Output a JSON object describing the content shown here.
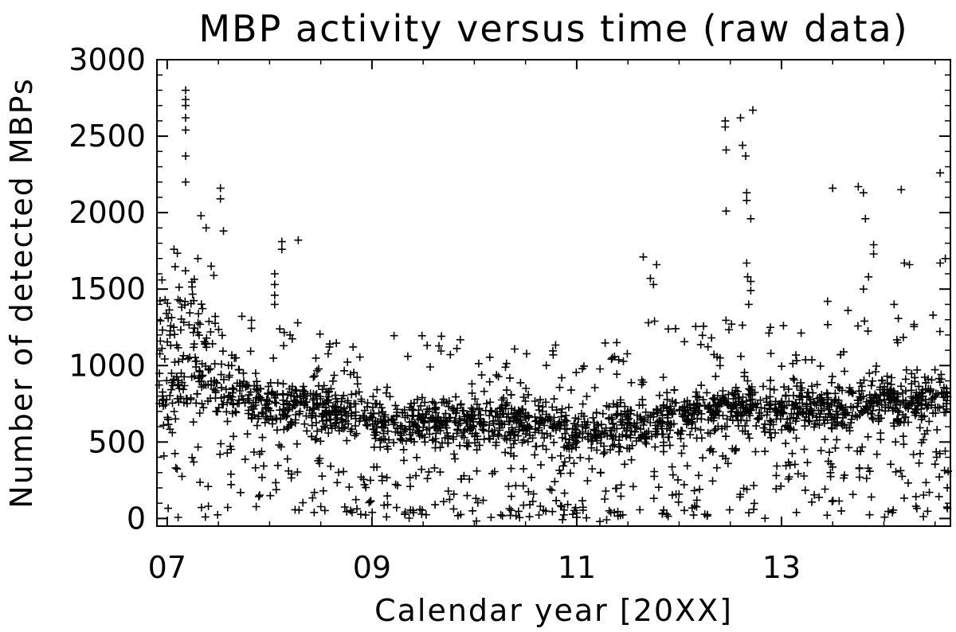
{
  "chart_data": {
    "type": "scatter",
    "title": "MBP activity versus time (raw data)",
    "xlabel": "Calendar year [20XX]",
    "ylabel": "Number of detected MBPs",
    "xlim": [
      2006.9,
      2014.65
    ],
    "ylim": [
      -50,
      3000
    ],
    "x_ticks": [
      2007,
      2009,
      2011,
      2013
    ],
    "x_tick_labels": [
      "07",
      "09",
      "11",
      "13"
    ],
    "y_ticks": [
      0,
      500,
      1000,
      1500,
      2000,
      2500,
      3000
    ],
    "y_tick_labels": [
      "0",
      "500",
      "1000",
      "1500",
      "2000",
      "2500",
      "3000"
    ],
    "marker": "plus",
    "grid": false,
    "trend": [
      [
        2006.9,
        850
      ],
      [
        2007.2,
        900
      ],
      [
        2007.5,
        820
      ],
      [
        2008.0,
        780
      ],
      [
        2008.5,
        720
      ],
      [
        2009.0,
        660
      ],
      [
        2009.5,
        640
      ],
      [
        2010.0,
        610
      ],
      [
        2010.5,
        640
      ],
      [
        2011.0,
        570
      ],
      [
        2011.5,
        620
      ],
      [
        2012.0,
        690
      ],
      [
        2012.5,
        740
      ],
      [
        2013.0,
        700
      ],
      [
        2013.5,
        750
      ],
      [
        2014.0,
        760
      ],
      [
        2014.65,
        780
      ]
    ],
    "highlights": [
      [
        2007.18,
        2800
      ],
      [
        2007.18,
        2740
      ],
      [
        2007.18,
        2700
      ],
      [
        2007.18,
        2620
      ],
      [
        2007.18,
        2540
      ],
      [
        2007.18,
        2370
      ],
      [
        2007.18,
        2200
      ],
      [
        2007.33,
        1980
      ],
      [
        2007.38,
        1900
      ],
      [
        2007.52,
        2160
      ],
      [
        2007.52,
        2090
      ],
      [
        2007.55,
        1880
      ],
      [
        2007.43,
        1650
      ],
      [
        2007.3,
        1700
      ],
      [
        2006.95,
        1560
      ],
      [
        2006.98,
        1430
      ],
      [
        2008.12,
        1810
      ],
      [
        2008.12,
        1760
      ],
      [
        2008.28,
        1820
      ],
      [
        2008.05,
        1600
      ],
      [
        2008.05,
        1530
      ],
      [
        2008.05,
        1460
      ],
      [
        2008.05,
        1400
      ],
      [
        2008.1,
        1240
      ],
      [
        2008.2,
        1200
      ],
      [
        2009.35,
        1060
      ],
      [
        2011.65,
        1710
      ],
      [
        2011.72,
        1570
      ],
      [
        2011.75,
        1530
      ],
      [
        2011.78,
        1660
      ],
      [
        2011.7,
        1280
      ],
      [
        2011.76,
        1290
      ],
      [
        2012.45,
        2600
      ],
      [
        2012.45,
        2560
      ],
      [
        2012.46,
        2410
      ],
      [
        2012.46,
        2010
      ],
      [
        2012.6,
        2620
      ],
      [
        2012.62,
        2440
      ],
      [
        2012.65,
        2370
      ],
      [
        2012.72,
        2670
      ],
      [
        2012.66,
        2130
      ],
      [
        2012.66,
        2080
      ],
      [
        2012.7,
        1960
      ],
      [
        2012.66,
        1670
      ],
      [
        2012.67,
        1580
      ],
      [
        2012.7,
        1550
      ],
      [
        2012.7,
        1490
      ],
      [
        2012.68,
        1400
      ],
      [
        2013.5,
        2160
      ],
      [
        2013.75,
        2170
      ],
      [
        2013.8,
        2130
      ],
      [
        2013.82,
        1960
      ],
      [
        2013.9,
        1790
      ],
      [
        2013.9,
        1730
      ],
      [
        2013.8,
        1500
      ],
      [
        2013.85,
        1580
      ],
      [
        2014.17,
        2150
      ],
      [
        2014.2,
        1670
      ],
      [
        2014.25,
        1660
      ],
      [
        2014.55,
        2260
      ],
      [
        2014.55,
        1670
      ],
      [
        2014.6,
        1700
      ],
      [
        2013.45,
        1420
      ],
      [
        2012.4,
        1050
      ],
      [
        2012.4,
        1000
      ],
      [
        2013.65,
        1360
      ],
      [
        2014.1,
        1400
      ],
      [
        2014.48,
        1330
      ]
    ]
  }
}
